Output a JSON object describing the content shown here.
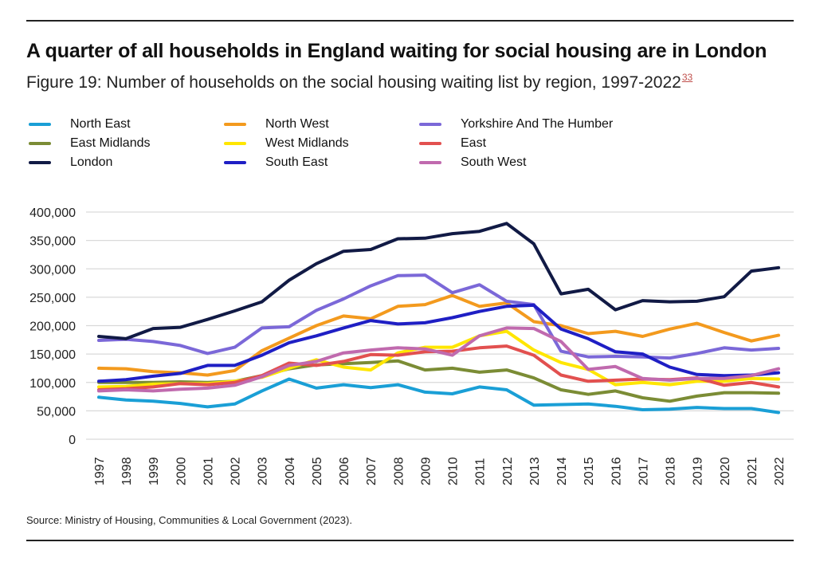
{
  "header": {
    "title": "A quarter of all households in England waiting for social housing are in London",
    "subtitle": "Figure 19: Number of households on the social housing waiting list by region, 1997-2022",
    "footnote_ref": "33"
  },
  "source": "Source: Ministry of Housing, Communities & Local Government (2023).",
  "chart_data": {
    "type": "line",
    "title": "Number of households on the social housing waiting list by region, 1997-2022",
    "xlabel": "",
    "ylabel": "",
    "ylim": [
      0,
      400000
    ],
    "yticks": [
      0,
      50000,
      100000,
      150000,
      200000,
      250000,
      300000,
      350000,
      400000
    ],
    "ytick_labels": [
      "0",
      "50,000",
      "100,000",
      "150,000",
      "200,000",
      "250,000",
      "300,000",
      "350,000",
      "400,000"
    ],
    "grid": true,
    "legend_position": "top",
    "x": [
      "1997",
      "1998",
      "1999",
      "2000",
      "2001",
      "2002",
      "2003",
      "2004",
      "2005",
      "2006",
      "2007",
      "2008",
      "2009",
      "2010",
      "2011",
      "2012",
      "2013",
      "2014",
      "2015",
      "2016",
      "2017",
      "2018",
      "2019",
      "2020",
      "2021",
      "2022"
    ],
    "series": [
      {
        "name": "North East",
        "color": "#1a9fd6",
        "values": [
          74000,
          69000,
          67000,
          63000,
          57000,
          62000,
          85000,
          106000,
          90000,
          96000,
          91000,
          96000,
          83000,
          80000,
          92000,
          87000,
          60000,
          61000,
          62000,
          58000,
          52000,
          53000,
          56000,
          54000,
          54000,
          47000
        ]
      },
      {
        "name": "North West",
        "color": "#f39a1e",
        "values": [
          125000,
          124000,
          119000,
          117000,
          113000,
          121000,
          156000,
          178000,
          200000,
          217000,
          212000,
          234000,
          237000,
          253000,
          234000,
          240000,
          207000,
          200000,
          186000,
          190000,
          181000,
          194000,
          204000,
          188000,
          173000,
          183000
        ]
      },
      {
        "name": "Yorkshire And The Humber",
        "color": "#7b68d8",
        "values": [
          174000,
          176000,
          172000,
          165000,
          151000,
          162000,
          196000,
          198000,
          227000,
          247000,
          270000,
          288000,
          289000,
          258000,
          272000,
          243000,
          237000,
          155000,
          145000,
          146000,
          145000,
          143000,
          151000,
          161000,
          157000,
          160000
        ]
      },
      {
        "name": "East Midlands",
        "color": "#7b8c35",
        "values": [
          100000,
          100000,
          100000,
          101000,
          100000,
          102000,
          112000,
          124000,
          131000,
          133000,
          135000,
          138000,
          122000,
          125000,
          118000,
          122000,
          108000,
          87000,
          79000,
          85000,
          73000,
          67000,
          76000,
          82000,
          82000,
          81000
        ]
      },
      {
        "name": "West Midlands",
        "color": "#ffe600",
        "values": [
          92000,
          93000,
          97000,
          98000,
          98000,
          102000,
          109000,
          125000,
          140000,
          127000,
          122000,
          152000,
          162000,
          162000,
          182000,
          190000,
          157000,
          135000,
          123000,
          96000,
          100000,
          96000,
          102000,
          102000,
          107000,
          106000
        ]
      },
      {
        "name": "East",
        "color": "#e2504f",
        "values": [
          87000,
          89000,
          92000,
          98000,
          96000,
          100000,
          112000,
          134000,
          130000,
          137000,
          149000,
          148000,
          154000,
          155000,
          161000,
          164000,
          148000,
          113000,
          102000,
          104000,
          106000,
          105000,
          108000,
          95000,
          100000,
          92000
        ]
      },
      {
        "name": "London",
        "color": "#111a45",
        "values": [
          181000,
          177000,
          195000,
          197000,
          211000,
          226000,
          242000,
          280000,
          309000,
          331000,
          334000,
          353000,
          354000,
          362000,
          366000,
          380000,
          344000,
          256000,
          264000,
          228000,
          244000,
          242000,
          243000,
          251000,
          296000,
          302000
        ]
      },
      {
        "name": "South East",
        "color": "#1f1fc4",
        "values": [
          102000,
          105000,
          111000,
          116000,
          130000,
          130000,
          148000,
          170000,
          182000,
          196000,
          209000,
          203000,
          205000,
          214000,
          225000,
          234000,
          236000,
          194000,
          177000,
          154000,
          150000,
          127000,
          114000,
          112000,
          113000,
          117000
        ]
      },
      {
        "name": "South West",
        "color": "#c06aae",
        "values": [
          85000,
          87000,
          85000,
          88000,
          90000,
          95000,
          110000,
          130000,
          137000,
          152000,
          157000,
          161000,
          159000,
          148000,
          182000,
          196000,
          195000,
          172000,
          123000,
          128000,
          107000,
          104000,
          107000,
          107000,
          112000,
          124000
        ]
      }
    ]
  }
}
